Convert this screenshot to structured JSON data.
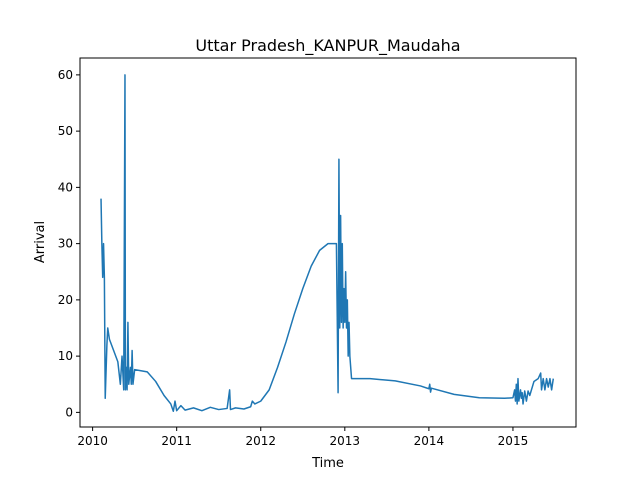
{
  "chart_data": {
    "type": "line",
    "title": "Uttar Pradesh_KANPUR_Maudaha",
    "xlabel": "Time",
    "ylabel": "Arrival",
    "xlim": [
      2009.85,
      2015.75
    ],
    "ylim": [
      -2.6,
      63.0
    ],
    "xticks": [
      2010,
      2011,
      2012,
      2013,
      2014,
      2015
    ],
    "xtick_labels": [
      "2010",
      "2011",
      "2012",
      "2013",
      "2014",
      "2015"
    ],
    "yticks": [
      0,
      10,
      20,
      30,
      40,
      50,
      60
    ],
    "ytick_labels": [
      "0",
      "10",
      "20",
      "30",
      "40",
      "50",
      "60"
    ],
    "grid": false,
    "line_color": "#1f77b4",
    "series": [
      {
        "points": [
          [
            2010.1,
            38
          ],
          [
            2010.11,
            30
          ],
          [
            2010.12,
            24
          ],
          [
            2010.13,
            30
          ],
          [
            2010.14,
            24
          ],
          [
            2010.15,
            2.5
          ],
          [
            2010.17,
            12
          ],
          [
            2010.18,
            15
          ],
          [
            2010.2,
            13
          ],
          [
            2010.25,
            11
          ],
          [
            2010.3,
            9
          ],
          [
            2010.33,
            5
          ],
          [
            2010.35,
            10
          ],
          [
            2010.37,
            4
          ],
          [
            2010.385,
            60
          ],
          [
            2010.39,
            4
          ],
          [
            2010.4,
            8
          ],
          [
            2010.41,
            4
          ],
          [
            2010.42,
            16
          ],
          [
            2010.43,
            5
          ],
          [
            2010.45,
            8
          ],
          [
            2010.46,
            5
          ],
          [
            2010.47,
            11
          ],
          [
            2010.48,
            5
          ],
          [
            2010.5,
            7.6
          ],
          [
            2010.65,
            7.2
          ],
          [
            2010.75,
            5.5
          ],
          [
            2010.85,
            3.0
          ],
          [
            2010.93,
            1.5
          ],
          [
            2010.96,
            0.2
          ],
          [
            2010.98,
            2.0
          ],
          [
            2011.0,
            0.3
          ],
          [
            2011.05,
            1.2
          ],
          [
            2011.1,
            0.4
          ],
          [
            2011.2,
            0.8
          ],
          [
            2011.3,
            0.3
          ],
          [
            2011.4,
            0.9
          ],
          [
            2011.5,
            0.5
          ],
          [
            2011.6,
            0.7
          ],
          [
            2011.63,
            4.0
          ],
          [
            2011.64,
            0.5
          ],
          [
            2011.7,
            0.8
          ],
          [
            2011.8,
            0.6
          ],
          [
            2011.88,
            1.0
          ],
          [
            2011.9,
            2.0
          ],
          [
            2011.93,
            1.5
          ],
          [
            2012.0,
            2.0
          ],
          [
            2012.1,
            4.0
          ],
          [
            2012.2,
            8.0
          ],
          [
            2012.3,
            12.5
          ],
          [
            2012.4,
            17.5
          ],
          [
            2012.5,
            22.0
          ],
          [
            2012.6,
            26.0
          ],
          [
            2012.7,
            28.8
          ],
          [
            2012.8,
            30.0
          ],
          [
            2012.9,
            30.0
          ],
          [
            2012.92,
            3.5
          ],
          [
            2012.93,
            45
          ],
          [
            2012.94,
            15
          ],
          [
            2012.95,
            35
          ],
          [
            2012.96,
            16
          ],
          [
            2012.97,
            30
          ],
          [
            2012.98,
            15
          ],
          [
            2012.99,
            22
          ],
          [
            2013.0,
            16
          ],
          [
            2013.01,
            25
          ],
          [
            2013.02,
            15
          ],
          [
            2013.03,
            20
          ],
          [
            2013.04,
            10
          ],
          [
            2013.05,
            16
          ],
          [
            2013.06,
            10
          ],
          [
            2013.08,
            6.0
          ],
          [
            2013.3,
            6.0
          ],
          [
            2013.6,
            5.6
          ],
          [
            2013.9,
            4.7
          ],
          [
            2014.0,
            4.2
          ],
          [
            2014.01,
            5.0
          ],
          [
            2014.02,
            3.6
          ],
          [
            2014.03,
            4.3
          ],
          [
            2014.3,
            3.2
          ],
          [
            2014.6,
            2.6
          ],
          [
            2014.9,
            2.5
          ],
          [
            2015.0,
            2.6
          ],
          [
            2015.02,
            4.0
          ],
          [
            2015.03,
            2.0
          ],
          [
            2015.04,
            5.0
          ],
          [
            2015.05,
            1.5
          ],
          [
            2015.06,
            6.0
          ],
          [
            2015.07,
            2.0
          ],
          [
            2015.09,
            4.0
          ],
          [
            2015.1,
            2.5
          ],
          [
            2015.11,
            3.5
          ],
          [
            2015.12,
            1.5
          ],
          [
            2015.14,
            3.8
          ],
          [
            2015.16,
            2.0
          ],
          [
            2015.18,
            3.8
          ],
          [
            2015.2,
            3.0
          ],
          [
            2015.25,
            5.5
          ],
          [
            2015.3,
            6.0
          ],
          [
            2015.33,
            7.0
          ],
          [
            2015.34,
            4.0
          ],
          [
            2015.36,
            6.0
          ],
          [
            2015.38,
            4.0
          ],
          [
            2015.4,
            6.0
          ],
          [
            2015.42,
            4.5
          ],
          [
            2015.44,
            6.0
          ],
          [
            2015.46,
            4.0
          ],
          [
            2015.48,
            6.0
          ]
        ]
      }
    ]
  }
}
